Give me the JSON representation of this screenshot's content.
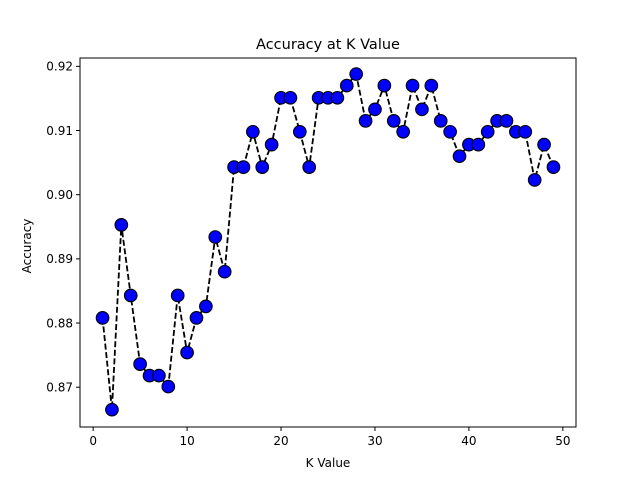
{
  "chart_data": {
    "type": "line",
    "title": "Accuracy at K Value",
    "xlabel": "K Value",
    "ylabel": "Accuracy",
    "xlim": [
      -1.4,
      51.4
    ],
    "ylim": [
      0.8638,
      0.9213
    ],
    "x_ticks": [
      0,
      10,
      20,
      30,
      40,
      50
    ],
    "x_tick_labels": [
      "0",
      "10",
      "20",
      "30",
      "40",
      "50"
    ],
    "y_ticks": [
      0.87,
      0.88,
      0.89,
      0.9,
      0.91,
      0.92
    ],
    "y_tick_labels": [
      "0.87",
      "0.88",
      "0.89",
      "0.90",
      "0.91",
      "0.92"
    ],
    "grid": false,
    "legend": "none",
    "series": [
      {
        "line_color": "#000000",
        "line_style": "dashed",
        "marker": "circle",
        "marker_face_color": "#0000ff",
        "marker_edge_color": "#000000",
        "x": [
          1,
          2,
          3,
          4,
          5,
          6,
          7,
          8,
          9,
          10,
          11,
          12,
          13,
          14,
          15,
          16,
          17,
          18,
          19,
          20,
          21,
          22,
          23,
          24,
          25,
          26,
          27,
          28,
          29,
          30,
          31,
          32,
          33,
          34,
          35,
          36,
          37,
          38,
          39,
          40,
          41,
          42,
          43,
          44,
          45,
          46,
          47,
          48,
          49
        ],
        "y": [
          0.8808,
          0.8665,
          0.8953,
          0.8843,
          0.8736,
          0.8718,
          0.8718,
          0.8701,
          0.8843,
          0.8754,
          0.8808,
          0.8826,
          0.8934,
          0.888,
          0.9043,
          0.9043,
          0.9098,
          0.9043,
          0.9078,
          0.9151,
          0.9151,
          0.9098,
          0.9043,
          0.9151,
          0.9151,
          0.9151,
          0.917,
          0.9188,
          0.9115,
          0.9133,
          0.917,
          0.9115,
          0.9098,
          0.917,
          0.9133,
          0.917,
          0.9115,
          0.9098,
          0.906,
          0.9078,
          0.9078,
          0.9098,
          0.9115,
          0.9115,
          0.9098,
          0.9098,
          0.9023,
          0.9078,
          0.9043
        ]
      }
    ]
  }
}
